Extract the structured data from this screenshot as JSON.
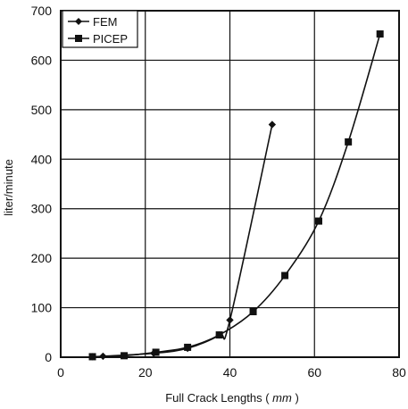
{
  "chart_data": {
    "type": "line",
    "xlabel": "Full Crack Lengths",
    "xlabel_unit": "mm",
    "ylabel": "liter/minute",
    "xlim": [
      0,
      80
    ],
    "ylim": [
      0,
      700
    ],
    "xticks": [
      0,
      20,
      40,
      60,
      80
    ],
    "yticks": [
      0,
      100,
      200,
      300,
      400,
      500,
      600,
      700
    ],
    "grid": true,
    "legend_position": "top-left",
    "series": [
      {
        "name": "FEM",
        "marker": "diamond",
        "x": [
          7.5,
          10,
          22,
          30,
          37.5,
          40,
          50
        ],
        "y": [
          1,
          2,
          8,
          18,
          45,
          75,
          470
        ]
      },
      {
        "name": "PICEP",
        "marker": "square",
        "x": [
          7.5,
          15,
          22.5,
          30,
          37.5,
          45.5,
          53,
          61,
          68,
          75.5
        ],
        "y": [
          1,
          3,
          10,
          20,
          45,
          92,
          165,
          275,
          435,
          653
        ]
      }
    ]
  }
}
